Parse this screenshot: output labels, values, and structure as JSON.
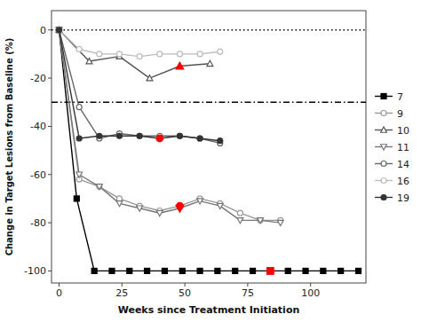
{
  "chart_data": {
    "type": "line",
    "xlabel": "Weeks since Treatment Initiation",
    "ylabel": "Change in Target Lesions from Baseline (%)",
    "xlim": [
      -3,
      122
    ],
    "ylim": [
      -105,
      8
    ],
    "xticks": [
      0,
      25,
      50,
      75,
      100
    ],
    "yticks": [
      0,
      -20,
      -40,
      -60,
      -80,
      -100
    ],
    "grid": false,
    "legend": "right",
    "highlight_color": "#ff0000",
    "reference_lines": [
      {
        "value": 0,
        "line_style": "dotted",
        "color": "#000000"
      },
      {
        "value": -30,
        "line_style": "dashdot",
        "color": "#000000"
      }
    ],
    "series": [
      {
        "name": "7",
        "color": "#000000",
        "marker": "square",
        "x": [
          0,
          7,
          14,
          21,
          28,
          35,
          42,
          49,
          56,
          63,
          70,
          77,
          84,
          91,
          98,
          105,
          112,
          119
        ],
        "values": [
          0,
          -70,
          -100,
          -100,
          -100,
          -100,
          -100,
          -100,
          -100,
          -100,
          -100,
          -100,
          -100,
          -100,
          -100,
          -100,
          -100,
          -100
        ],
        "highlight_x": [
          84
        ],
        "highlight_values": [
          -100
        ]
      },
      {
        "name": "9",
        "color": "#999999",
        "marker": "circle-open",
        "x": [
          0,
          8,
          16,
          24,
          32,
          40,
          48,
          56,
          64,
          72,
          80,
          88
        ],
        "values": [
          0,
          -62,
          -65,
          -70,
          -73,
          -75,
          -73,
          -70,
          -72,
          -76,
          -79,
          -79
        ],
        "highlight_x": [
          48
        ],
        "highlight_values": [
          -73
        ]
      },
      {
        "name": "10",
        "color": "#555555",
        "marker": "triangle-up-open",
        "x": [
          0,
          12,
          24,
          36,
          48,
          60
        ],
        "values": [
          0,
          -13,
          -11,
          -20,
          -15,
          -14
        ],
        "highlight_x": [
          48
        ],
        "highlight_values": [
          -15
        ]
      },
      {
        "name": "11",
        "color": "#777777",
        "marker": "triangle-down-open",
        "x": [
          0,
          8,
          16,
          24,
          32,
          40,
          48,
          56,
          64,
          72,
          80,
          88
        ],
        "values": [
          0,
          -60,
          -65,
          -72,
          -74,
          -76,
          -74,
          -71,
          -73,
          -79,
          -79,
          -80
        ],
        "highlight_x": [
          48
        ],
        "highlight_values": [
          -74
        ]
      },
      {
        "name": "14",
        "color": "#666666",
        "marker": "circle-open",
        "x": [
          0,
          8,
          16,
          24,
          32,
          40,
          48,
          56,
          64
        ],
        "values": [
          0,
          -32,
          -45,
          -43,
          -44,
          -44,
          -44,
          -45,
          -47
        ],
        "highlight_x": [],
        "highlight_values": []
      },
      {
        "name": "16",
        "color": "#bbbbbb",
        "marker": "circle-open",
        "x": [
          0,
          8,
          16,
          24,
          32,
          40,
          48,
          56,
          64
        ],
        "values": [
          0,
          -8,
          -10,
          -10,
          -11,
          -10,
          -10,
          -10,
          -9
        ],
        "highlight_x": [],
        "highlight_values": []
      },
      {
        "name": "19",
        "color": "#333333",
        "marker": "circle",
        "x": [
          0,
          8,
          16,
          24,
          32,
          40,
          48,
          56,
          64
        ],
        "values": [
          0,
          -45,
          -44,
          -44,
          -44,
          -45,
          -44,
          -45,
          -46
        ],
        "highlight_x": [
          40
        ],
        "highlight_values": [
          -45
        ]
      }
    ]
  }
}
